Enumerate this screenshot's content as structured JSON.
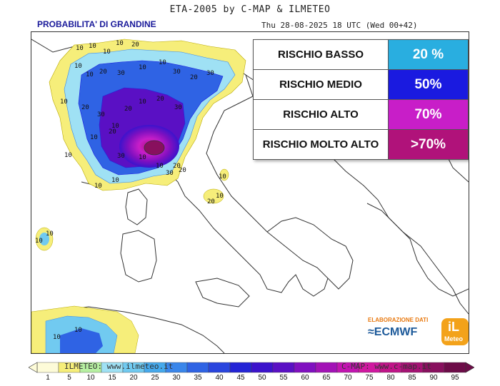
{
  "header": {
    "title": "ETA-2005 by C-MAP & ILMETEO",
    "subtitle": "PROBABILITA' DI GRANDINE",
    "run_info": "Thu 28-08-2025 18 UTC (Wed 00+42)"
  },
  "legend_box": {
    "rows": [
      {
        "label": "RISCHIO BASSO",
        "value": "20 %",
        "color": "#29aee0"
      },
      {
        "label": "RISCHIO MEDIO",
        "value": "50%",
        "color": "#1a1ae0"
      },
      {
        "label": "RISCHIO ALTO",
        "value": "70%",
        "color": "#c81ec8"
      },
      {
        "label": "RISCHIO MOLTO ALTO",
        "value": ">70%",
        "color": "#b0127a"
      }
    ]
  },
  "contour_labels": [
    "10",
    "10",
    "10",
    "10",
    "20",
    "10",
    "10",
    "20",
    "30",
    "10",
    "10",
    "30",
    "20",
    "30",
    "10",
    "20",
    "30",
    "10",
    "10",
    "20",
    "30",
    "10",
    "10",
    "20",
    "10",
    "10",
    "30",
    "20",
    "10",
    "20",
    "10",
    "10",
    "10",
    "10",
    "20",
    "10",
    "20",
    "30",
    "10",
    "10"
  ],
  "logos": {
    "elaborazione": "ELABORAZIONE DATI",
    "ecmwf": "ECMWF",
    "ilmeteo_mark": "iL",
    "ilmeteo_name": "Meteo"
  },
  "footer": {
    "left": "ILMETEO: www.ilmeteo.it",
    "right": "C-MAP: www.c-map.it"
  },
  "color_scale": {
    "ticks": [
      "1",
      "5",
      "10",
      "15",
      "20",
      "25",
      "30",
      "35",
      "40",
      "45",
      "50",
      "55",
      "60",
      "65",
      "70",
      "75",
      "80",
      "85",
      "90",
      "95"
    ],
    "colors": [
      "#fdfbd8",
      "#f6ee7a",
      "#b7f0a2",
      "#9fe1f4",
      "#71caf0",
      "#46a9ec",
      "#3a86ea",
      "#2f63e4",
      "#2a45de",
      "#2424d6",
      "#3c13cc",
      "#5a10c4",
      "#8010c0",
      "#a212b6",
      "#c214b0",
      "#d018a0",
      "#c01488",
      "#a51274",
      "#88105e",
      "#6d0c48"
    ]
  }
}
